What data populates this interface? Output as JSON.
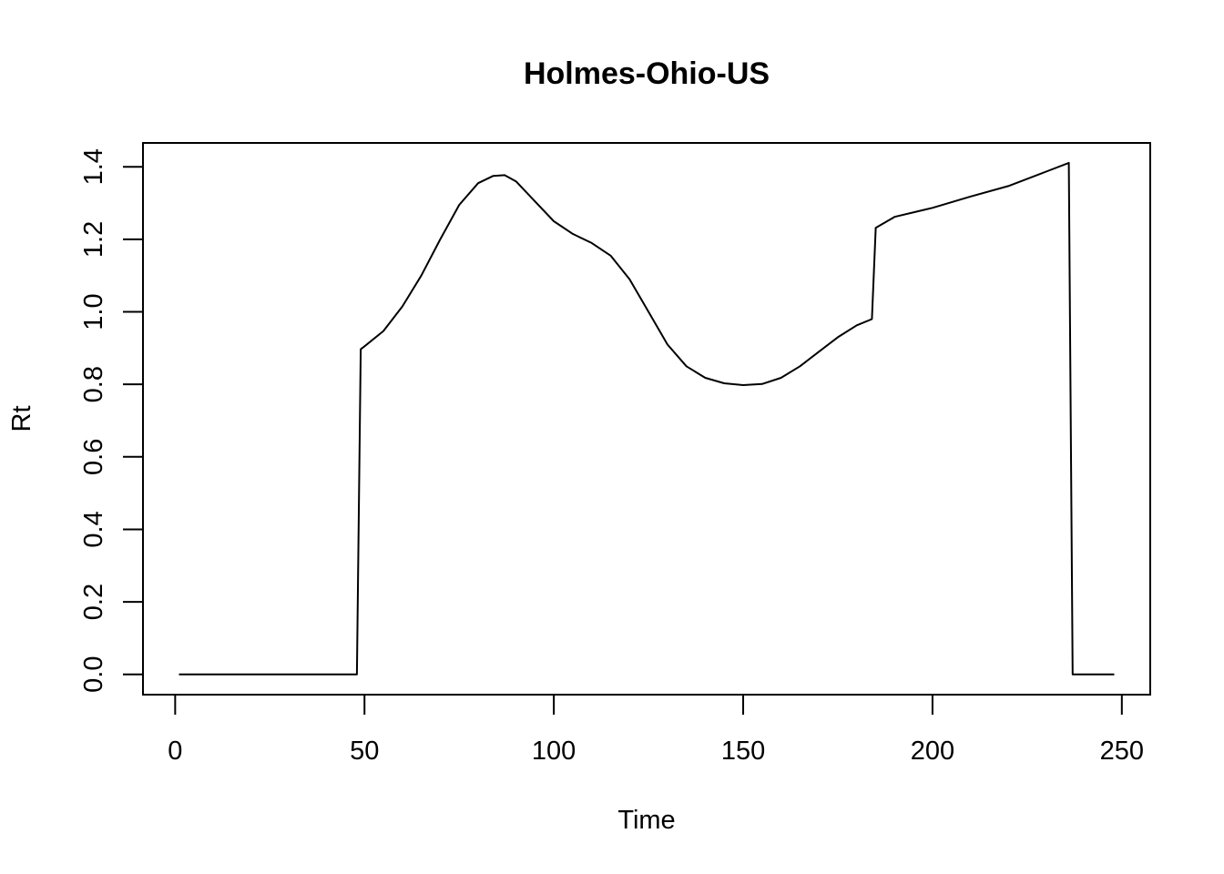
{
  "chart_data": {
    "type": "line",
    "title": "Holmes-Ohio-US",
    "xlabel": "Time",
    "ylabel": "Rt",
    "xlim": [
      -8.5,
      257.5
    ],
    "ylim": [
      -0.056,
      1.466
    ],
    "x_ticks": [
      0,
      50,
      100,
      150,
      200,
      250
    ],
    "x_tick_labels": [
      "0",
      "50",
      "100",
      "150",
      "200",
      "250"
    ],
    "y_ticks": [
      0.0,
      0.2,
      0.4,
      0.6,
      0.8,
      1.0,
      1.2,
      1.4
    ],
    "y_tick_labels": [
      "0.0",
      "0.2",
      "0.4",
      "0.6",
      "0.8",
      "1.0",
      "1.2",
      "1.4"
    ],
    "grid": false,
    "line_color": "#000000",
    "series": [
      {
        "x": [
          1,
          10,
          20,
          30,
          40,
          48,
          49,
          50,
          55,
          60,
          65,
          70,
          75,
          80,
          84,
          87,
          90,
          95,
          100,
          105,
          110,
          115,
          120,
          125,
          130,
          135,
          140,
          145,
          150,
          155,
          160,
          165,
          170,
          175,
          180,
          184,
          185,
          190,
          200,
          210,
          220,
          230,
          236,
          237,
          240,
          248
        ],
        "y": [
          0,
          0,
          0,
          0,
          0,
          0,
          0.897,
          0.905,
          0.947,
          1.015,
          1.1,
          1.2,
          1.295,
          1.355,
          1.375,
          1.377,
          1.36,
          1.305,
          1.25,
          1.215,
          1.19,
          1.155,
          1.09,
          1.0,
          0.91,
          0.85,
          0.818,
          0.803,
          0.798,
          0.801,
          0.818,
          0.85,
          0.89,
          0.93,
          0.963,
          0.98,
          1.232,
          1.262,
          1.287,
          1.318,
          1.347,
          1.387,
          1.411,
          0.0,
          0.0,
          0.0
        ]
      }
    ]
  }
}
